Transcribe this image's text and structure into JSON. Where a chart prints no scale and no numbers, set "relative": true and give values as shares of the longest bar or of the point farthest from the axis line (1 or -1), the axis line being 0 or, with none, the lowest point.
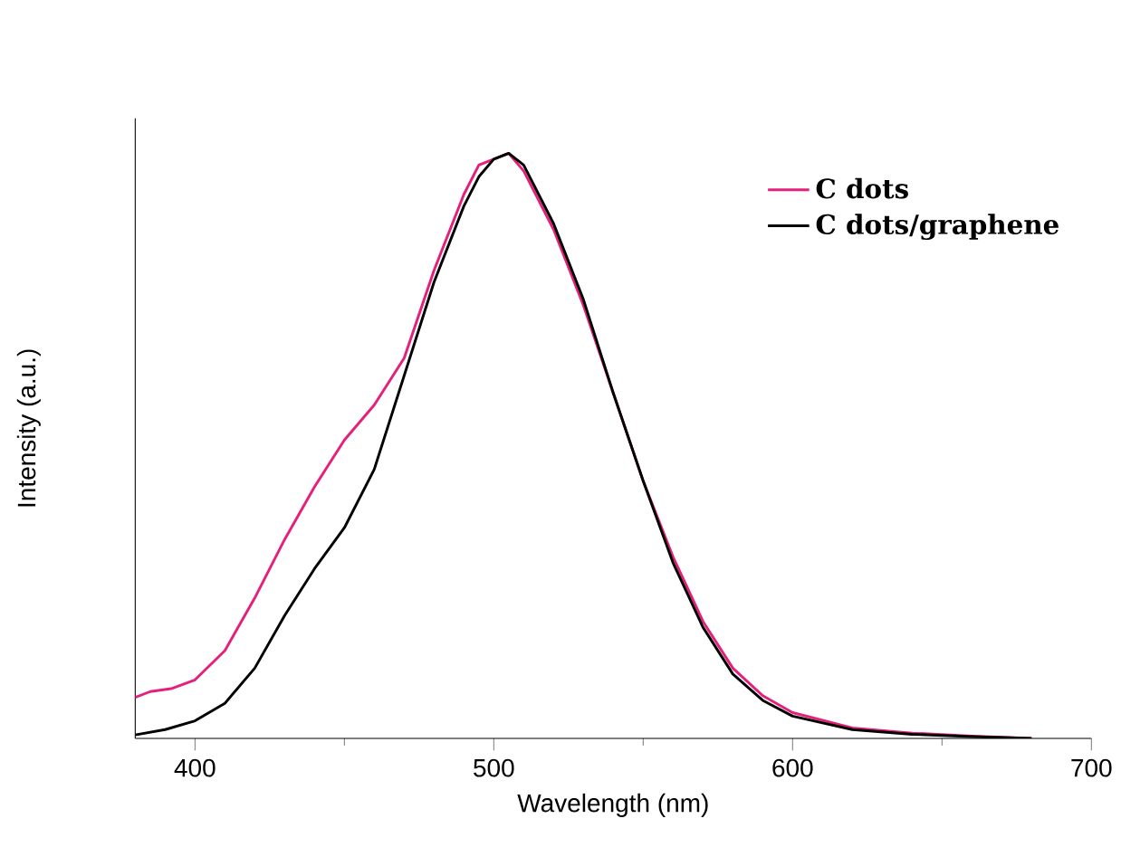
{
  "chart_data": {
    "type": "line",
    "xlabel": "Wavelength (nm)",
    "ylabel": "Intensity (a.u.)",
    "relative": true,
    "xlim": [
      380,
      700
    ],
    "xticks": [
      400,
      {
        "value": 450,
        "label": null
      },
      500,
      {
        "value": 550,
        "label": null
      },
      600,
      {
        "value": 650,
        "label": null
      },
      700
    ],
    "legend": "top right",
    "grid": false,
    "marker": "none",
    "line_style": "solid",
    "series": [
      {
        "name": "C dots",
        "color": "#e5207a",
        "x": [
          380,
          385,
          392,
          400,
          410,
          420,
          430,
          440,
          450,
          460,
          470,
          480,
          490,
          495,
          500,
          505,
          510,
          520,
          530,
          540,
          550,
          560,
          570,
          580,
          590,
          600,
          620,
          640,
          660,
          680
        ],
        "values": [
          0.07,
          0.08,
          0.085,
          0.1,
          0.15,
          0.24,
          0.34,
          0.43,
          0.51,
          0.57,
          0.65,
          0.8,
          0.93,
          0.98,
          0.99,
          1.0,
          0.97,
          0.87,
          0.74,
          0.59,
          0.44,
          0.31,
          0.2,
          0.12,
          0.073,
          0.044,
          0.018,
          0.009,
          0.004,
          0.0
        ]
      },
      {
        "name": "C dots/graphene",
        "color": "#000000",
        "x": [
          380,
          390,
          400,
          410,
          420,
          430,
          440,
          450,
          460,
          470,
          480,
          490,
          495,
          500,
          505,
          510,
          520,
          530,
          540,
          550,
          560,
          570,
          580,
          590,
          600,
          620,
          640,
          660,
          680
        ],
        "values": [
          0.006,
          0.015,
          0.03,
          0.06,
          0.12,
          0.21,
          0.29,
          0.36,
          0.46,
          0.62,
          0.78,
          0.91,
          0.96,
          0.99,
          1.0,
          0.98,
          0.88,
          0.75,
          0.59,
          0.44,
          0.3,
          0.19,
          0.11,
          0.065,
          0.038,
          0.015,
          0.007,
          0.003,
          0.0
        ]
      }
    ]
  }
}
